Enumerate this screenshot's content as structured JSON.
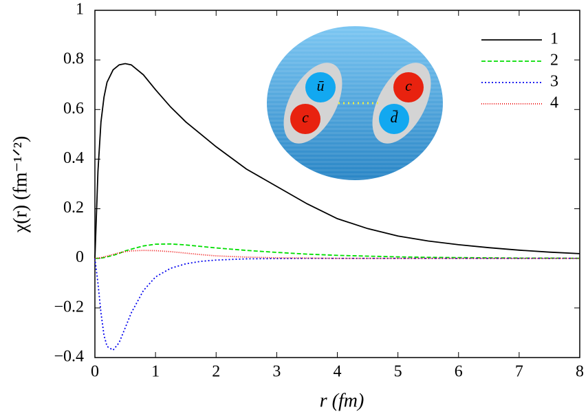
{
  "chart_data": {
    "type": "line",
    "xlabel": "r (fm)",
    "ylabel": "χ(r)  (fm⁻¹ᐟ²)",
    "x": [
      0,
      0.05,
      0.1,
      0.15,
      0.2,
      0.3,
      0.4,
      0.5,
      0.6,
      0.8,
      1,
      1.25,
      1.5,
      1.75,
      2,
      2.5,
      3,
      3.5,
      4,
      4.5,
      5,
      5.5,
      6,
      6.5,
      7,
      7.5,
      8
    ],
    "series": [
      {
        "name": "1",
        "color": "#000000",
        "dash": "none",
        "values": [
          0,
          0.35,
          0.55,
          0.65,
          0.71,
          0.76,
          0.78,
          0.785,
          0.78,
          0.74,
          0.68,
          0.61,
          0.55,
          0.5,
          0.45,
          0.36,
          0.29,
          0.22,
          0.16,
          0.12,
          0.09,
          0.07,
          0.055,
          0.043,
          0.033,
          0.025,
          0.019
        ]
      },
      {
        "name": "2",
        "color": "#00dd00",
        "dash": "6 3",
        "values": [
          0,
          0,
          0.001,
          0.003,
          0.006,
          0.012,
          0.02,
          0.03,
          0.037,
          0.05,
          0.057,
          0.058,
          0.054,
          0.048,
          0.042,
          0.032,
          0.024,
          0.017,
          0.012,
          0.009,
          0.006,
          0.004,
          0.003,
          0.002,
          0.001,
          0.001,
          0
        ]
      },
      {
        "name": "3",
        "color": "#0000ee",
        "dash": "2 3",
        "values": [
          0,
          -0.1,
          -0.22,
          -0.31,
          -0.355,
          -0.37,
          -0.34,
          -0.28,
          -0.22,
          -0.13,
          -0.075,
          -0.04,
          -0.022,
          -0.012,
          -0.007,
          -0.002,
          -0.001,
          0,
          0,
          0,
          0,
          0,
          0,
          0,
          0,
          0,
          0
        ]
      },
      {
        "name": "4",
        "color": "#ee0000",
        "dash": "1 2",
        "values": [
          0,
          0.001,
          0.003,
          0.006,
          0.009,
          0.016,
          0.022,
          0.027,
          0.03,
          0.032,
          0.031,
          0.027,
          0.021,
          0.015,
          0.01,
          0.005,
          0.002,
          0.001,
          0,
          0,
          0,
          0,
          0,
          0,
          0,
          0,
          0
        ]
      }
    ],
    "xlim": [
      0,
      8
    ],
    "xticks": [
      0,
      1,
      2,
      3,
      4,
      5,
      6,
      7,
      8
    ],
    "ylim": [
      -0.4,
      1
    ],
    "yticks": [
      {
        "value": -0.4,
        "label": "−0.4"
      },
      {
        "value": -0.2,
        "label": "−0.2"
      },
      0,
      0.2,
      0.4,
      0.6,
      0.8,
      1
    ],
    "legend": "upper right",
    "inset": {
      "labels": [
        "ū",
        "c",
        "c",
        "d̄"
      ]
    }
  }
}
